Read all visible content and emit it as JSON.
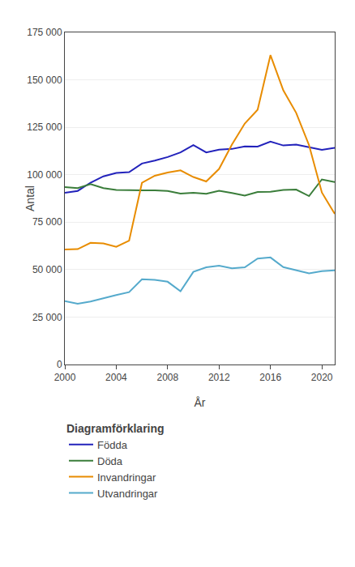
{
  "chart_data": {
    "type": "line",
    "x": [
      2000,
      2001,
      2002,
      2003,
      2004,
      2005,
      2006,
      2007,
      2008,
      2009,
      2010,
      2011,
      2012,
      2013,
      2014,
      2015,
      2016,
      2017,
      2018,
      2019,
      2020,
      2021
    ],
    "series": [
      {
        "name": "Födda",
        "color": "#2222bb",
        "values": [
          90441,
          91466,
          95815,
          99157,
          100928,
          101346,
          105913,
          107421,
          109301,
          111801,
          115641,
          111770,
          113177,
          113593,
          114907,
          114870,
          117425,
          115416,
          115832,
          114523,
          113077,
          114171
        ]
      },
      {
        "name": "Döda",
        "color": "#3a7d3a",
        "values": [
          93461,
          92958,
          95009,
          92961,
          91952,
          91710,
          91729,
          91729,
          91449,
          90080,
          90487,
          89938,
          91513,
          90402,
          88976,
          90907,
          90982,
          91972,
          92185,
          88766,
          97525,
          96147
        ]
      },
      {
        "name": "Invandringar",
        "color": "#e88c00",
        "values": [
          60595,
          60795,
          64087,
          63795,
          62028,
          65229,
          95750,
          99485,
          101171,
          102280,
          98801,
          96467,
          103059,
          115845,
          126966,
          134240,
          163005,
          144489,
          132602,
          115570,
          90631,
          79366
        ]
      },
      {
        "name": "Utvandringar",
        "color": "#55aacc",
        "values": [
          33394,
          32008,
          33188,
          35023,
          36586,
          38118,
          44908,
          44562,
          43608,
          38651,
          48838,
          51179,
          52077,
          50725,
          51237,
          55830,
          56411,
          51301,
          49688,
          47998,
          49174,
          49597
        ]
      }
    ],
    "x_label": "År",
    "y_label": "Antal",
    "legend_title": "Diagramförklaring",
    "xlim": [
      2000,
      2021
    ],
    "xticks": [
      2000,
      2004,
      2008,
      2012,
      2016,
      2020
    ],
    "ylim": [
      0,
      175000
    ],
    "yticks": [
      0,
      {
        "value": 25000,
        "label": "25 000"
      },
      {
        "value": 50000,
        "label": "50 000"
      },
      {
        "value": 75000,
        "label": "75 000"
      },
      {
        "value": 100000,
        "label": "100 000"
      },
      {
        "value": 125000,
        "label": "125 000"
      },
      {
        "value": 150000,
        "label": "150 000"
      },
      {
        "value": 175000,
        "label": "175 000"
      }
    ],
    "grid": true,
    "legend": "bottom"
  }
}
